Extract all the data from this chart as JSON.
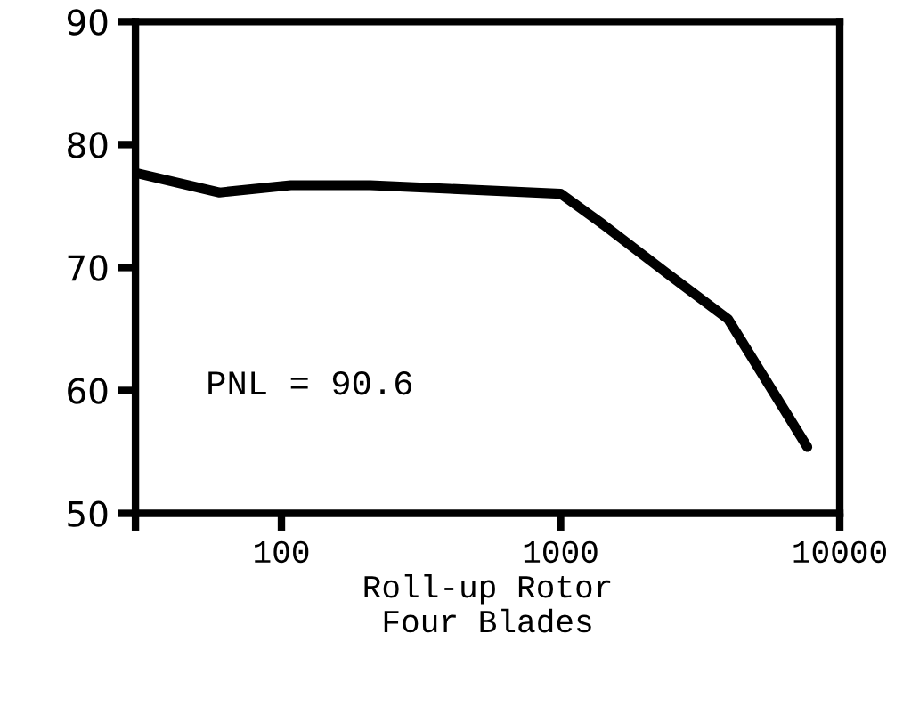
{
  "chart_data": {
    "type": "line",
    "log": "x",
    "xlabel": "Roll-up Rotor\nFour Blades",
    "x": [
      30,
      60,
      108,
      208,
      1000,
      1420,
      2380,
      3980,
      7650
    ],
    "values": [
      77.7,
      76.1,
      76.7,
      76.7,
      76.0,
      73.5,
      69.6,
      65.8,
      55.4
    ],
    "color": "#000000",
    "marker": "none",
    "line_style": "solid",
    "xlim": [
      30,
      10000
    ],
    "xticks": [
      {
        "value": 30,
        "label": null
      },
      100,
      1000,
      10000
    ],
    "ylim": [
      50,
      90
    ],
    "yticks": [
      50,
      60,
      70,
      80,
      90
    ],
    "grid": false,
    "annotations": [
      "PNL = 90.6"
    ]
  }
}
